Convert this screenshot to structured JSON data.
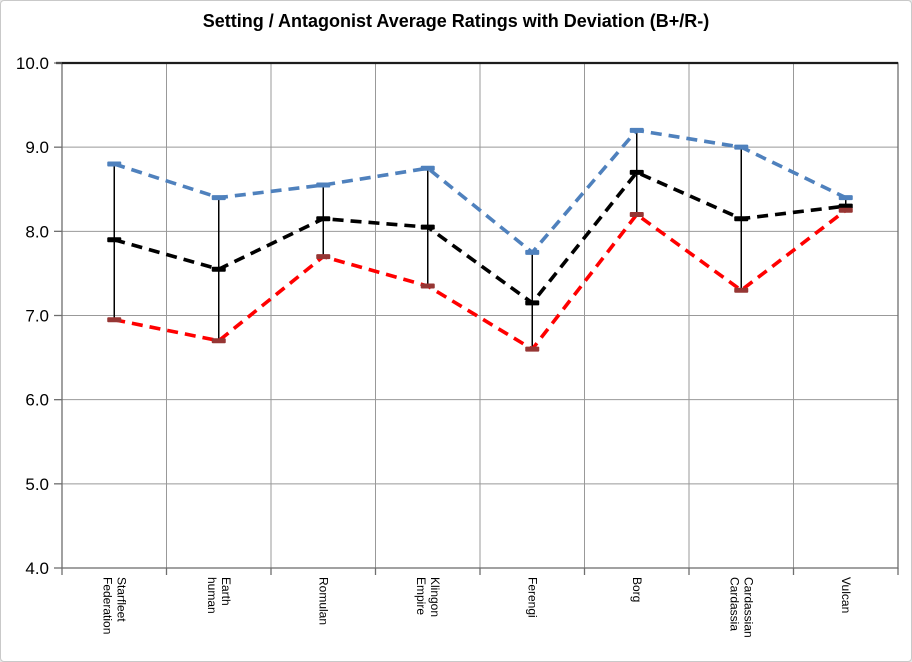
{
  "chart_data": {
    "type": "line",
    "title": "Setting / Antagonist Average Ratings with Deviation (B+/R-)",
    "categories": [
      "Starfleet Federation",
      "Earth human",
      "Romulan",
      "Klingon Empire",
      "Ferengi",
      "Borg",
      "Cardassian Cardassia",
      "Vulcan"
    ],
    "category_label_lines": [
      [
        "Starfleet",
        "Federation"
      ],
      [
        "Earth",
        "human"
      ],
      [
        "Romulan"
      ],
      [
        "Klingon",
        "Empire"
      ],
      [
        "Ferengi"
      ],
      [
        "Borg"
      ],
      [
        "Cardassian",
        "Cardassia"
      ],
      [
        "Vulcan"
      ]
    ],
    "series": [
      {
        "name": "B+",
        "role": "average-plus-deviation",
        "color": "#4F81BD",
        "marker_color": "#4F81BD",
        "line_style": "dashed",
        "values": [
          8.8,
          8.4,
          8.55,
          8.75,
          7.75,
          9.2,
          9.0,
          8.4
        ]
      },
      {
        "name": "average",
        "role": "average",
        "color": "#000000",
        "marker_color": "#000000",
        "line_style": "dashed",
        "values": [
          7.9,
          7.55,
          8.15,
          8.05,
          7.15,
          8.7,
          8.15,
          8.3
        ]
      },
      {
        "name": "R-",
        "role": "average-minus-deviation",
        "color": "#FF0000",
        "marker_color": "#963634",
        "line_style": "dashed",
        "values": [
          6.95,
          6.7,
          7.7,
          7.35,
          6.6,
          8.2,
          7.3,
          8.25
        ]
      }
    ],
    "error_bars": {
      "between": [
        "R-",
        "B+"
      ],
      "color": "#000000"
    },
    "y_axis": {
      "min": 4.0,
      "max": 10.0,
      "step": 1.0,
      "tick_labels": [
        "10.0",
        "9.0",
        "8.0",
        "7.0",
        "6.0",
        "5.0",
        "4.0"
      ]
    },
    "x_axis": {
      "labels_rotated_90_clockwise": true
    },
    "grid": true,
    "legend_position": "none",
    "plot_colors": {
      "gridline": "#999999",
      "axis": "#6e6e6e",
      "plot_border": "#1c1c1c",
      "background": "#FFFFFF",
      "chart_border": "#C9C9C9"
    }
  }
}
